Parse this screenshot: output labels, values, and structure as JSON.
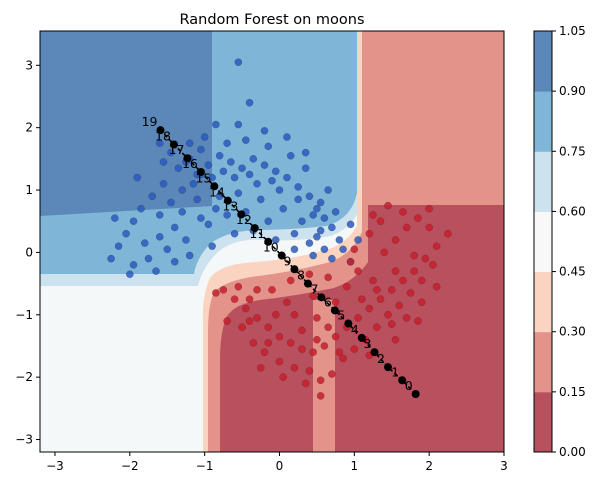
{
  "chart_data": {
    "type": "scatter",
    "title": "Random Forest on moons",
    "xlabel": "",
    "ylabel": "",
    "xlim": [
      -3.2,
      3.0
    ],
    "ylim": [
      -3.2,
      3.55
    ],
    "x_ticks": [
      -3,
      -2,
      -1,
      0,
      1,
      2,
      3
    ],
    "y_ticks": [
      -3,
      -2,
      -1,
      0,
      1,
      2,
      3
    ],
    "grid": false,
    "background": {
      "type": "filled-contour",
      "description_levels": [
        0.0,
        0.15,
        0.3,
        0.45,
        0.6,
        0.75,
        0.9,
        1.05
      ],
      "colormap": "RdBu"
    },
    "colorbar": {
      "ticks": [
        "0.00",
        "0.15",
        "0.30",
        "0.45",
        "0.60",
        "0.75",
        "0.90",
        "1.05"
      ],
      "band_colors": [
        "#b8505e",
        "#e3938a",
        "#fad4c1",
        "#f8f8f8",
        "#cde2ef",
        "#7fb6d8",
        "#5b88b8"
      ]
    },
    "series": [
      {
        "class": 0,
        "color": "#2a5bbf",
        "points": [
          [
            -1.35,
            1.35
          ],
          [
            -1.2,
            1.5
          ],
          [
            -1.1,
            1.25
          ],
          [
            -0.95,
            1.4
          ],
          [
            -0.8,
            1.55
          ],
          [
            -0.65,
            1.45
          ],
          [
            -0.5,
            1.35
          ],
          [
            -0.35,
            1.5
          ],
          [
            -0.2,
            1.4
          ],
          [
            -0.05,
            1.3
          ],
          [
            0.1,
            1.2
          ],
          [
            0.25,
            1.05
          ],
          [
            0.4,
            0.9
          ],
          [
            0.5,
            0.7
          ],
          [
            0.6,
            0.55
          ],
          [
            0.7,
            0.4
          ],
          [
            0.8,
            0.2
          ],
          [
            0.85,
            0.05
          ],
          [
            -1.55,
            1.1
          ],
          [
            -1.7,
            0.9
          ],
          [
            -1.85,
            0.7
          ],
          [
            -1.95,
            0.5
          ],
          [
            -2.05,
            0.3
          ],
          [
            -2.15,
            0.1
          ],
          [
            -2.25,
            -0.1
          ],
          [
            -1.6,
            0.6
          ],
          [
            -1.45,
            0.8
          ],
          [
            -1.3,
            1.0
          ],
          [
            -1.15,
            1.1
          ],
          [
            -0.9,
            1.2
          ],
          [
            -0.6,
            1.2
          ],
          [
            -0.3,
            1.1
          ],
          [
            0.0,
            1.0
          ],
          [
            0.25,
            0.85
          ],
          [
            0.45,
            0.6
          ],
          [
            0.55,
            0.35
          ],
          [
            -1.4,
            0.4
          ],
          [
            -1.6,
            0.25
          ],
          [
            -1.8,
            0.15
          ],
          [
            -1.95,
            -0.2
          ],
          [
            -1.75,
            -0.1
          ],
          [
            -1.5,
            0.05
          ],
          [
            -1.25,
            0.2
          ],
          [
            -1.05,
            0.55
          ],
          [
            -0.8,
            0.9
          ],
          [
            -0.55,
            0.95
          ],
          [
            -0.25,
            0.85
          ],
          [
            0.05,
            0.7
          ],
          [
            0.3,
            0.5
          ],
          [
            0.5,
            0.25
          ],
          [
            0.6,
            0.05
          ],
          [
            -0.7,
            1.75
          ],
          [
            -0.45,
            1.8
          ],
          [
            -0.15,
            1.7
          ],
          [
            0.15,
            1.55
          ],
          [
            0.35,
            1.35
          ],
          [
            -1.0,
            1.85
          ],
          [
            -0.85,
            2.05
          ],
          [
            -0.55,
            2.05
          ],
          [
            -0.4,
            2.4
          ],
          [
            -0.2,
            1.95
          ],
          [
            0.1,
            1.85
          ],
          [
            -0.55,
            3.05
          ],
          [
            -1.45,
            1.6
          ],
          [
            -1.2,
            1.75
          ],
          [
            -1.05,
            1.65
          ],
          [
            -1.3,
            0.65
          ],
          [
            -1.1,
            0.85
          ],
          [
            -0.95,
            0.45
          ],
          [
            -0.7,
            0.6
          ],
          [
            -0.45,
            0.65
          ],
          [
            -0.15,
            0.5
          ],
          [
            0.2,
            0.3
          ],
          [
            0.4,
            0.15
          ],
          [
            0.7,
            -0.1
          ],
          [
            0.95,
            -0.15
          ],
          [
            -2.0,
            -0.35
          ],
          [
            -1.65,
            -0.3
          ],
          [
            -1.4,
            -0.15
          ],
          [
            -1.2,
            -0.05
          ],
          [
            -0.9,
            0.1
          ],
          [
            -0.6,
            0.3
          ],
          [
            -0.35,
            0.35
          ],
          [
            -0.05,
            0.2
          ],
          [
            0.2,
            0.05
          ],
          [
            0.45,
            -0.05
          ],
          [
            0.75,
            0.65
          ],
          [
            0.95,
            0.45
          ],
          [
            1.05,
            0.2
          ],
          [
            0.65,
            1.0
          ],
          [
            0.35,
            1.6
          ],
          [
            -1.55,
            1.45
          ],
          [
            -1.25,
            1.45
          ],
          [
            -0.75,
            1.3
          ],
          [
            -0.4,
            1.25
          ],
          [
            -0.1,
            1.15
          ],
          [
            -2.2,
            0.55
          ],
          [
            -1.9,
            1.2
          ],
          [
            -1.6,
            1.75
          ],
          [
            -1.05,
            1.25
          ],
          [
            -0.85,
            0.7
          ],
          [
            0.55,
            0.8
          ]
        ]
      },
      {
        "class": 1,
        "color": "#c81e2b",
        "points": [
          [
            -0.6,
            -0.75
          ],
          [
            -0.45,
            -0.9
          ],
          [
            -0.3,
            -1.05
          ],
          [
            -0.15,
            -1.2
          ],
          [
            0.0,
            -1.35
          ],
          [
            0.15,
            -1.45
          ],
          [
            0.3,
            -1.55
          ],
          [
            0.45,
            -1.6
          ],
          [
            0.6,
            -1.5
          ],
          [
            0.75,
            -1.35
          ],
          [
            0.9,
            -1.2
          ],
          [
            1.05,
            -1.05
          ],
          [
            1.2,
            -0.9
          ],
          [
            1.35,
            -0.75
          ],
          [
            1.5,
            -0.6
          ],
          [
            1.65,
            -0.45
          ],
          [
            1.8,
            -0.3
          ],
          [
            1.95,
            -0.1
          ],
          [
            2.1,
            0.1
          ],
          [
            2.25,
            0.3
          ],
          [
            -0.5,
            -1.2
          ],
          [
            -0.35,
            -1.45
          ],
          [
            -0.2,
            -1.6
          ],
          [
            0.0,
            -1.75
          ],
          [
            0.2,
            -1.85
          ],
          [
            0.4,
            -1.9
          ],
          [
            0.55,
            -2.05
          ],
          [
            0.55,
            -2.3
          ],
          [
            0.7,
            -1.95
          ],
          [
            0.85,
            -1.7
          ],
          [
            1.0,
            -1.55
          ],
          [
            1.15,
            -1.4
          ],
          [
            1.3,
            -1.2
          ],
          [
            1.45,
            -1.0
          ],
          [
            1.6,
            -0.85
          ],
          [
            1.75,
            -0.65
          ],
          [
            1.9,
            -0.45
          ],
          [
            2.05,
            -0.2
          ],
          [
            1.4,
            0.0
          ],
          [
            1.55,
            0.2
          ],
          [
            1.7,
            0.4
          ],
          [
            1.85,
            0.55
          ],
          [
            2.0,
            0.7
          ],
          [
            1.45,
            0.75
          ],
          [
            1.2,
            0.3
          ],
          [
            1.05,
            -0.3
          ],
          [
            0.9,
            -0.55
          ],
          [
            0.75,
            -0.8
          ],
          [
            0.5,
            -1.05
          ],
          [
            0.3,
            -1.25
          ],
          [
            0.1,
            -0.8
          ],
          [
            -0.1,
            -0.6
          ],
          [
            -0.3,
            -0.6
          ],
          [
            -0.55,
            -0.55
          ],
          [
            -0.7,
            -1.1
          ],
          [
            -0.75,
            -0.6
          ],
          [
            -0.85,
            -0.65
          ],
          [
            -0.25,
            -1.85
          ],
          [
            0.05,
            -2.0
          ],
          [
            0.35,
            -2.1
          ],
          [
            0.95,
            -0.15
          ],
          [
            1.25,
            -0.45
          ],
          [
            1.55,
            -0.3
          ],
          [
            1.8,
            -0.05
          ],
          [
            2.0,
            0.4
          ],
          [
            1.65,
            0.65
          ],
          [
            1.35,
            0.5
          ],
          [
            0.45,
            -0.7
          ],
          [
            0.2,
            -1.0
          ],
          [
            -0.05,
            -1.0
          ],
          [
            -0.4,
            -0.75
          ],
          [
            0.65,
            -1.2
          ],
          [
            1.1,
            -0.75
          ],
          [
            1.3,
            -0.6
          ],
          [
            1.5,
            -1.15
          ],
          [
            1.7,
            -1.05
          ],
          [
            1.9,
            -0.8
          ],
          [
            0.8,
            -1.6
          ],
          [
            0.5,
            -1.4
          ],
          [
            -0.15,
            -1.45
          ],
          [
            -0.4,
            -1.1
          ],
          [
            1.2,
            -1.65
          ],
          [
            1.55,
            -1.4
          ],
          [
            1.85,
            -1.1
          ],
          [
            2.1,
            -0.55
          ],
          [
            0.15,
            -0.45
          ],
          [
            0.4,
            -0.35
          ],
          [
            0.65,
            -0.4
          ],
          [
            1.0,
            0.05
          ],
          [
            1.25,
            0.6
          ]
        ]
      },
      {
        "class": "path",
        "color": "#000000",
        "labels": [
          "0",
          "1",
          "2",
          "3",
          "4",
          "5",
          "6",
          "7",
          "8",
          "9",
          "10",
          "11",
          "12",
          "13",
          "14",
          "15",
          "16",
          "17",
          "18",
          "19"
        ],
        "points": [
          [
            1.82,
            -2.27
          ],
          [
            1.64,
            -2.05
          ],
          [
            1.45,
            -1.84
          ],
          [
            1.27,
            -1.6
          ],
          [
            1.1,
            -1.37
          ],
          [
            0.92,
            -1.14
          ],
          [
            0.74,
            -0.93
          ],
          [
            0.56,
            -0.72
          ],
          [
            0.38,
            -0.5
          ],
          [
            0.2,
            -0.27
          ],
          [
            0.03,
            -0.05
          ],
          [
            -0.15,
            0.17
          ],
          [
            -0.33,
            0.39
          ],
          [
            -0.51,
            0.61
          ],
          [
            -0.69,
            0.83
          ],
          [
            -0.87,
            1.06
          ],
          [
            -1.05,
            1.29
          ],
          [
            -1.23,
            1.51
          ],
          [
            -1.41,
            1.73
          ],
          [
            -1.59,
            1.96
          ]
        ]
      }
    ]
  }
}
